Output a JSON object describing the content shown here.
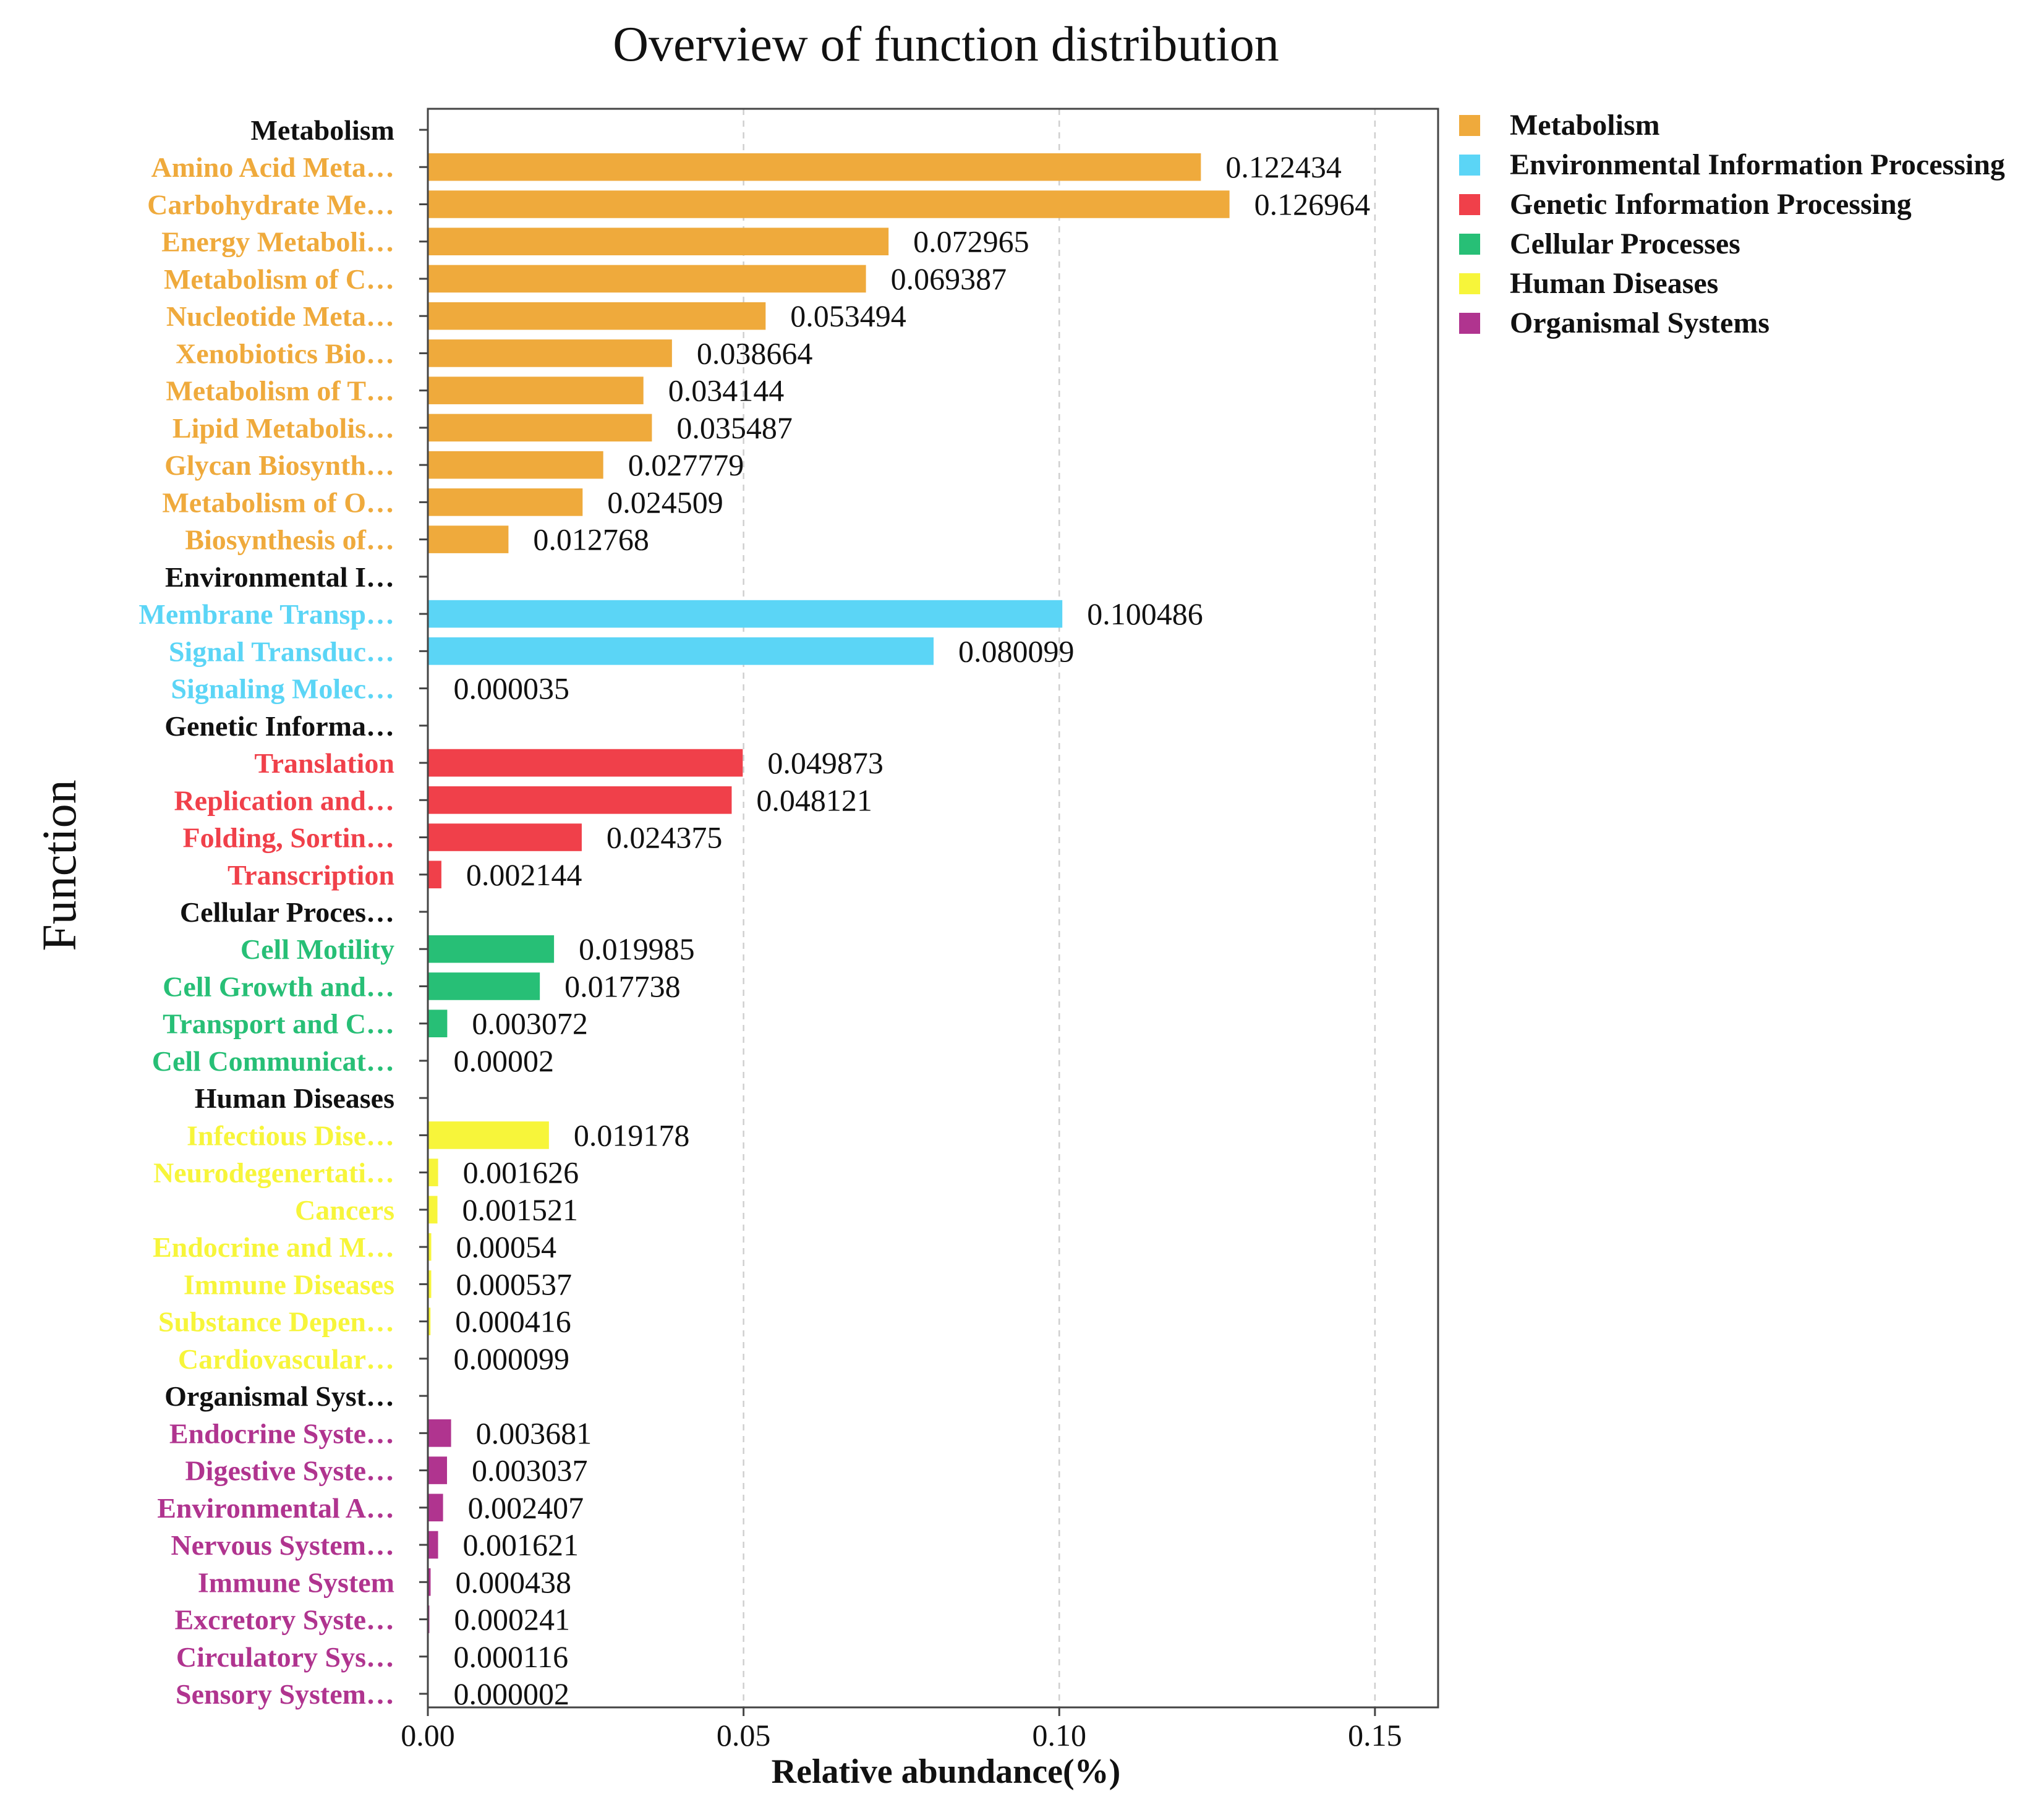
{
  "chart_data": {
    "type": "bar",
    "orientation": "horizontal",
    "title": "Overview of function distribution",
    "xlabel": "Relative abundance(%)",
    "ylabel": "Function",
    "xlim": [
      0,
      0.16
    ],
    "xticks": [
      "0.00",
      "0.05",
      "0.10",
      "0.15"
    ],
    "tick_values": [
      0,
      0.05,
      0.1,
      0.15
    ],
    "grid": "vertical dashed",
    "legend_placement": "right-top",
    "colors": {
      "Metabolism": "#efaa3c",
      "Environmental Information Processing": "#5bd5f6",
      "Genetic Information Processing": "#f0404a",
      "Cellular Processes": "#27bf76",
      "Human Diseases": "#f7f53a",
      "Organismal Systems": "#b0348f",
      "header": "#111111"
    },
    "legend": [
      "Metabolism",
      "Environmental Information Processing",
      "Genetic Information Processing",
      "Cellular Processes",
      "Human Diseases",
      "Organismal Systems"
    ],
    "rows": [
      {
        "label": "Metabolism",
        "group": "header"
      },
      {
        "label": "Amino Acid Meta…",
        "group": "Metabolism",
        "value": 0.122434,
        "value_label": "0.122434"
      },
      {
        "label": "Carbohydrate Me…",
        "group": "Metabolism",
        "value": 0.126964,
        "value_label": "0.126964"
      },
      {
        "label": "Energy Metaboli…",
        "group": "Metabolism",
        "value": 0.072965,
        "value_label": "0.072965"
      },
      {
        "label": "Metabolism of C…",
        "group": "Metabolism",
        "value": 0.069387,
        "value_label": "0.069387"
      },
      {
        "label": "Nucleotide Meta…",
        "group": "Metabolism",
        "value": 0.053494,
        "value_label": "0.053494"
      },
      {
        "label": "Xenobiotics Bio…",
        "group": "Metabolism",
        "value": 0.038664,
        "value_label": "0.038664"
      },
      {
        "label": "Metabolism of T…",
        "group": "Metabolism",
        "value": 0.034144,
        "value_label": "0.034144"
      },
      {
        "label": "Lipid Metabolis…",
        "group": "Metabolism",
        "value": 0.035487,
        "value_label": "0.035487"
      },
      {
        "label": "Glycan Biosynth…",
        "group": "Metabolism",
        "value": 0.027779,
        "value_label": "0.027779"
      },
      {
        "label": "Metabolism of O…",
        "group": "Metabolism",
        "value": 0.024509,
        "value_label": "0.024509"
      },
      {
        "label": "Biosynthesis of…",
        "group": "Metabolism",
        "value": 0.012768,
        "value_label": "0.012768"
      },
      {
        "label": "Environmental I…",
        "group": "header"
      },
      {
        "label": "Membrane Transp…",
        "group": "Environmental Information Processing",
        "value": 0.100486,
        "value_label": "0.100486"
      },
      {
        "label": "Signal Transduc…",
        "group": "Environmental Information Processing",
        "value": 0.080099,
        "value_label": "0.080099"
      },
      {
        "label": "Signaling Molec…",
        "group": "Environmental Information Processing",
        "value": 3.5e-05,
        "value_label": "0.000035"
      },
      {
        "label": "Genetic Informa…",
        "group": "header"
      },
      {
        "label": "Translation",
        "group": "Genetic Information Processing",
        "value": 0.049873,
        "value_label": "0.049873"
      },
      {
        "label": "Replication and…",
        "group": "Genetic Information Processing",
        "value": 0.048121,
        "value_label": "0.048121"
      },
      {
        "label": "Folding, Sortin…",
        "group": "Genetic Information Processing",
        "value": 0.024375,
        "value_label": "0.024375"
      },
      {
        "label": "Transcription",
        "group": "Genetic Information Processing",
        "value": 0.002144,
        "value_label": "0.002144"
      },
      {
        "label": "Cellular Proces…",
        "group": "header"
      },
      {
        "label": "Cell Motility",
        "group": "Cellular Processes",
        "value": 0.019985,
        "value_label": "0.019985"
      },
      {
        "label": "Cell Growth and…",
        "group": "Cellular Processes",
        "value": 0.017738,
        "value_label": "0.017738"
      },
      {
        "label": "Transport and C…",
        "group": "Cellular Processes",
        "value": 0.003072,
        "value_label": "0.003072"
      },
      {
        "label": "Cell Communicat…",
        "group": "Cellular Processes",
        "value": 2e-05,
        "value_label": "0.00002"
      },
      {
        "label": "Human Diseases",
        "group": "header"
      },
      {
        "label": "Infectious Dise…",
        "group": "Human Diseases",
        "value": 0.019178,
        "value_label": "0.019178"
      },
      {
        "label": "Neurodegenertati…",
        "group": "Human Diseases",
        "value": 0.001626,
        "value_label": "0.001626"
      },
      {
        "label": "Cancers",
        "group": "Human Diseases",
        "value": 0.001521,
        "value_label": "0.001521"
      },
      {
        "label": "Endocrine and M…",
        "group": "Human Diseases",
        "value": 0.00054,
        "value_label": "0.00054"
      },
      {
        "label": "Immune Diseases",
        "group": "Human Diseases",
        "value": 0.000537,
        "value_label": "0.000537"
      },
      {
        "label": "Substance Depen…",
        "group": "Human Diseases",
        "value": 0.000416,
        "value_label": "0.000416"
      },
      {
        "label": "Cardiovascular…",
        "group": "Human Diseases",
        "value": 9.9e-05,
        "value_label": "0.000099"
      },
      {
        "label": "Organismal Syst…",
        "group": "header"
      },
      {
        "label": "Endocrine Syste…",
        "group": "Organismal Systems",
        "value": 0.003681,
        "value_label": "0.003681"
      },
      {
        "label": "Digestive Syste…",
        "group": "Organismal Systems",
        "value": 0.003037,
        "value_label": "0.003037"
      },
      {
        "label": "Environmental A…",
        "group": "Organismal Systems",
        "value": 0.002407,
        "value_label": "0.002407"
      },
      {
        "label": "Nervous System…",
        "group": "Organismal Systems",
        "value": 0.001621,
        "value_label": "0.001621"
      },
      {
        "label": "Immune System",
        "group": "Organismal Systems",
        "value": 0.000438,
        "value_label": "0.000438"
      },
      {
        "label": "Excretory Syste…",
        "group": "Organismal Systems",
        "value": 0.000241,
        "value_label": "0.000241"
      },
      {
        "label": "Circulatory Sys…",
        "group": "Organismal Systems",
        "value": 0.000116,
        "value_label": "0.000116"
      },
      {
        "label": "Sensory System…",
        "group": "Organismal Systems",
        "value": 2e-06,
        "value_label": "0.000002"
      }
    ]
  }
}
